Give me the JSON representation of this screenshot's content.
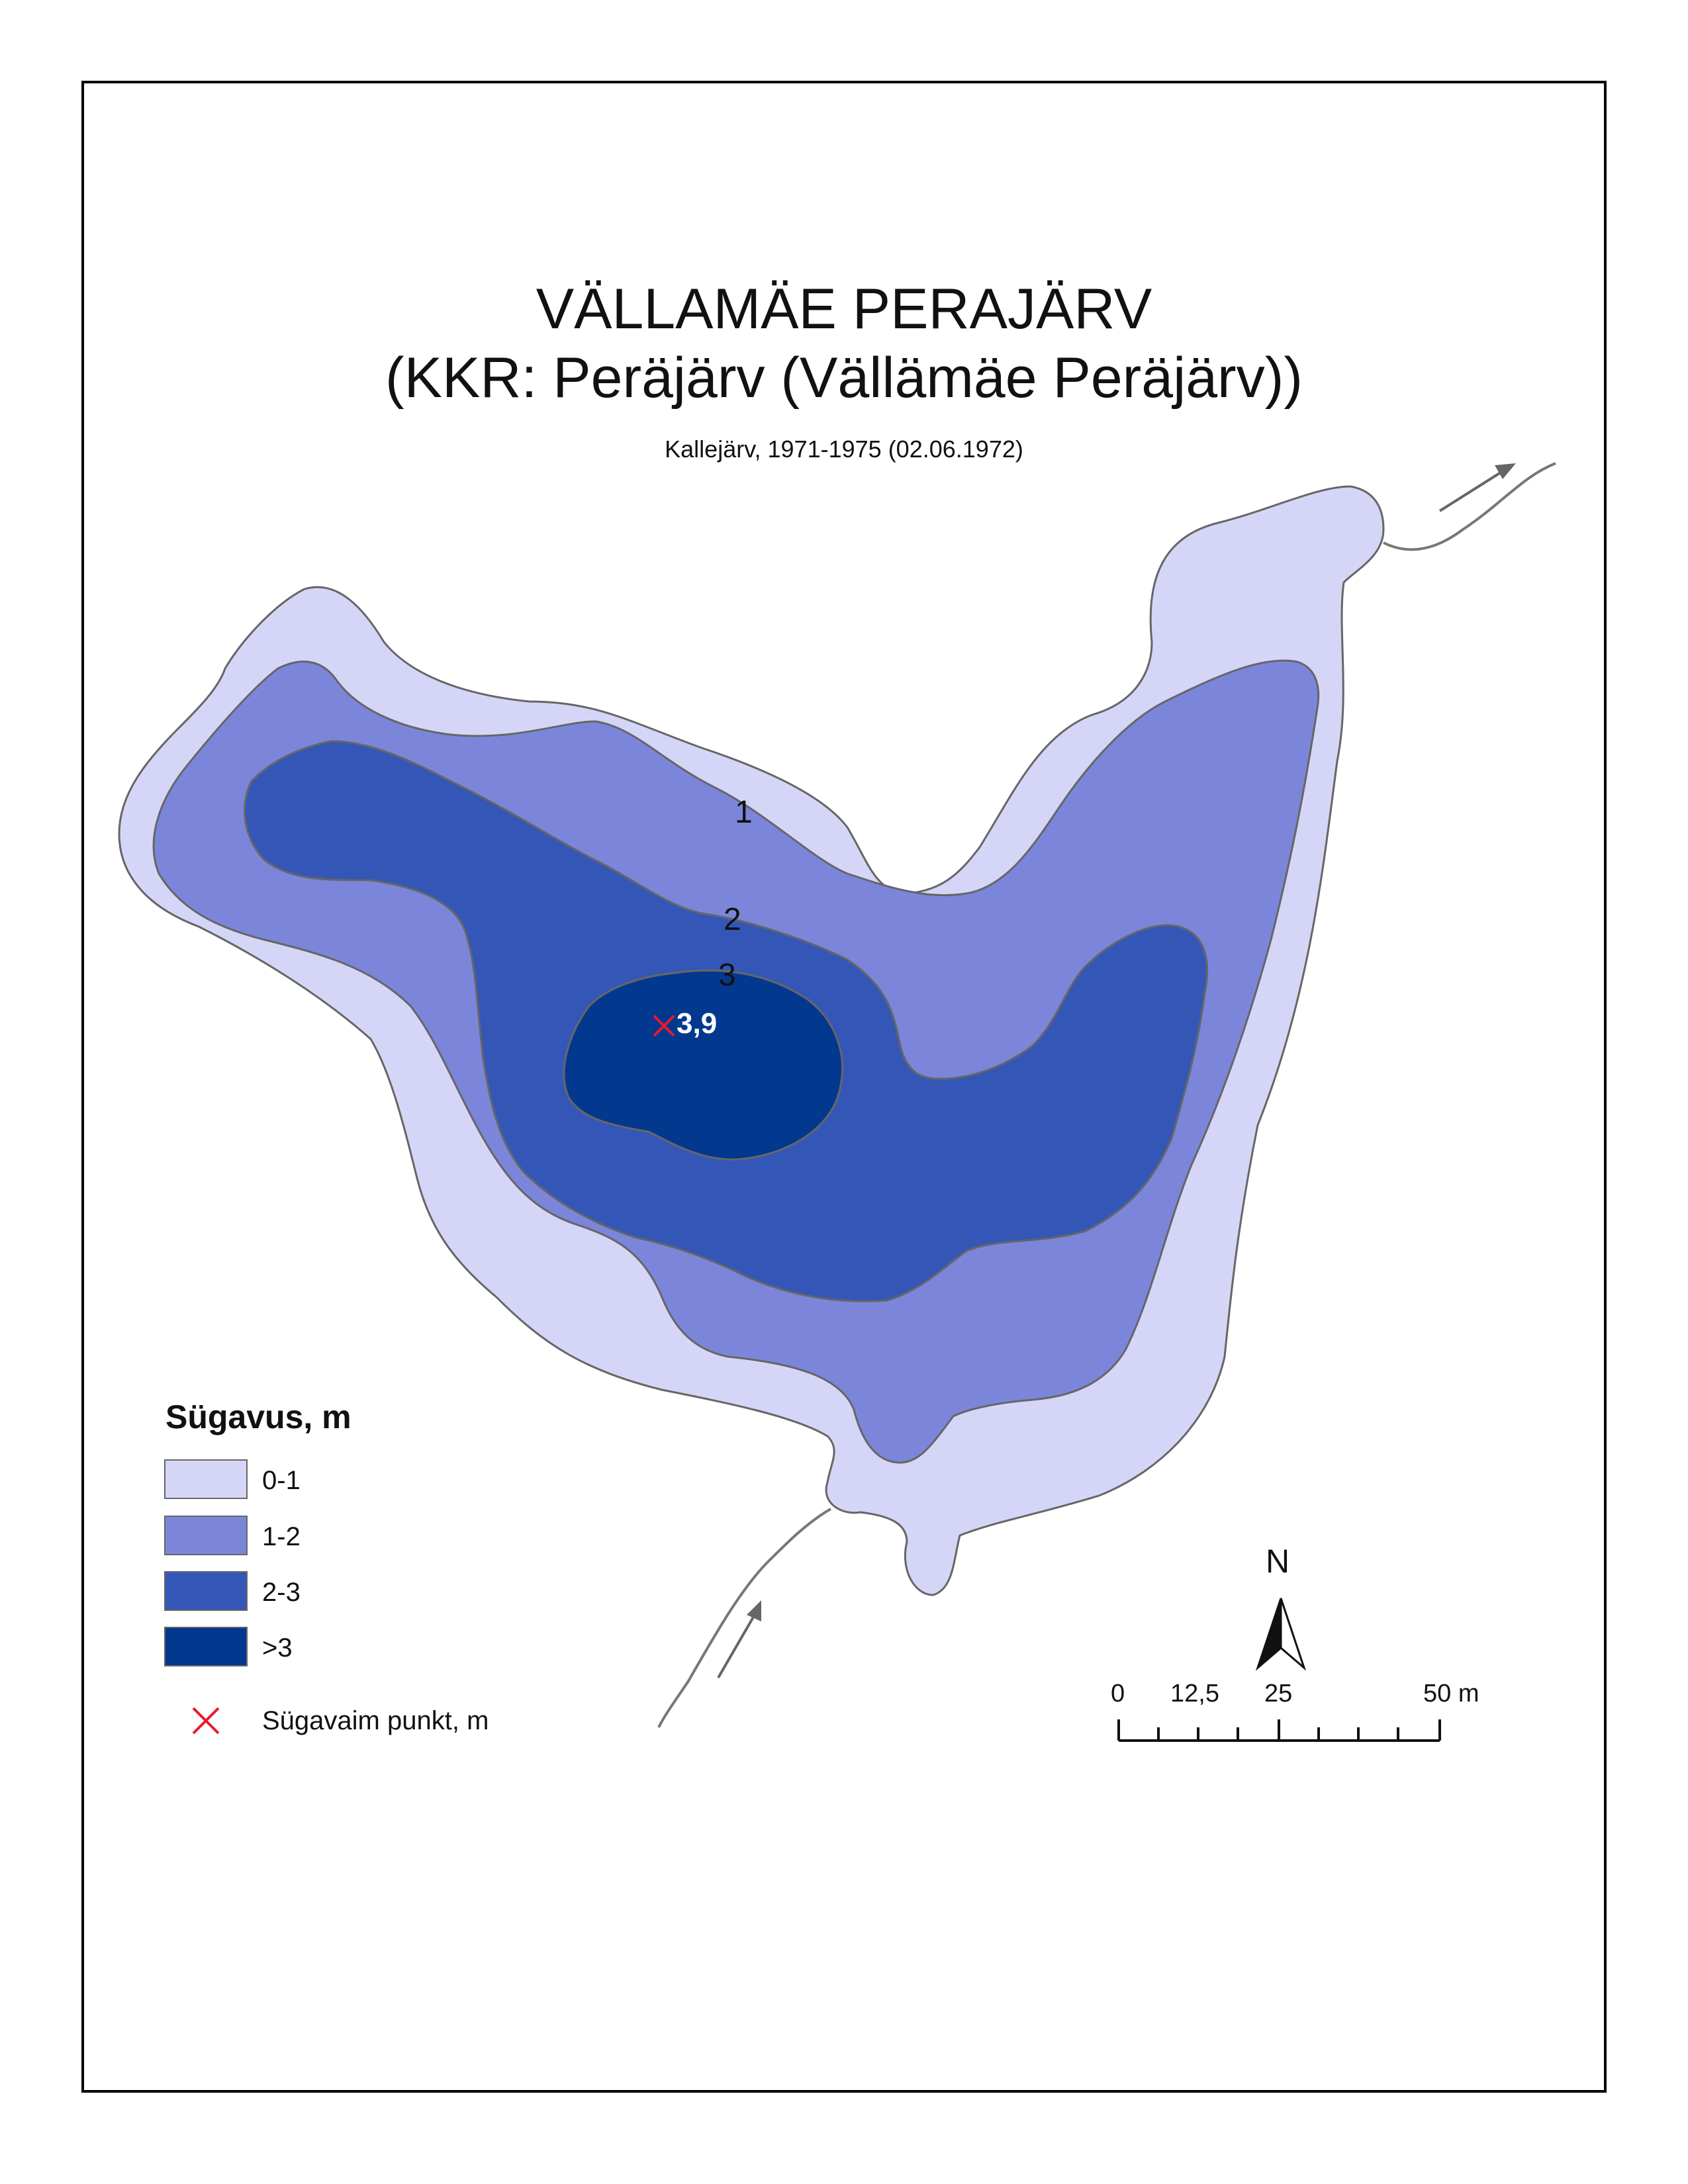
{
  "title": "VÄLLAMÄE PERAJÄRV",
  "subtitle_kkr": "(KKR: Peräjärv (Vällämäe Peräjärv))",
  "survey": "Kallejärv, 1971-1975 (02.06.1972)",
  "contour_labels": [
    "1",
    "2",
    "3"
  ],
  "deepest_point_label": "3,9",
  "legend": {
    "title": "Sügavus, m",
    "items": [
      {
        "label": "0-1",
        "color": "#d5d6f7"
      },
      {
        "label": "1-2",
        "color": "#7b86db"
      },
      {
        "label": "2-3",
        "color": "#3457b7"
      },
      {
        "label": ">3",
        "color": "#03388f"
      }
    ],
    "deepest_label": "Sügavaim punkt, m",
    "deepest_color": "#e8192c"
  },
  "north_label": "N",
  "scale": {
    "labels": [
      "0",
      "12,5",
      "25",
      "50 m"
    ]
  }
}
